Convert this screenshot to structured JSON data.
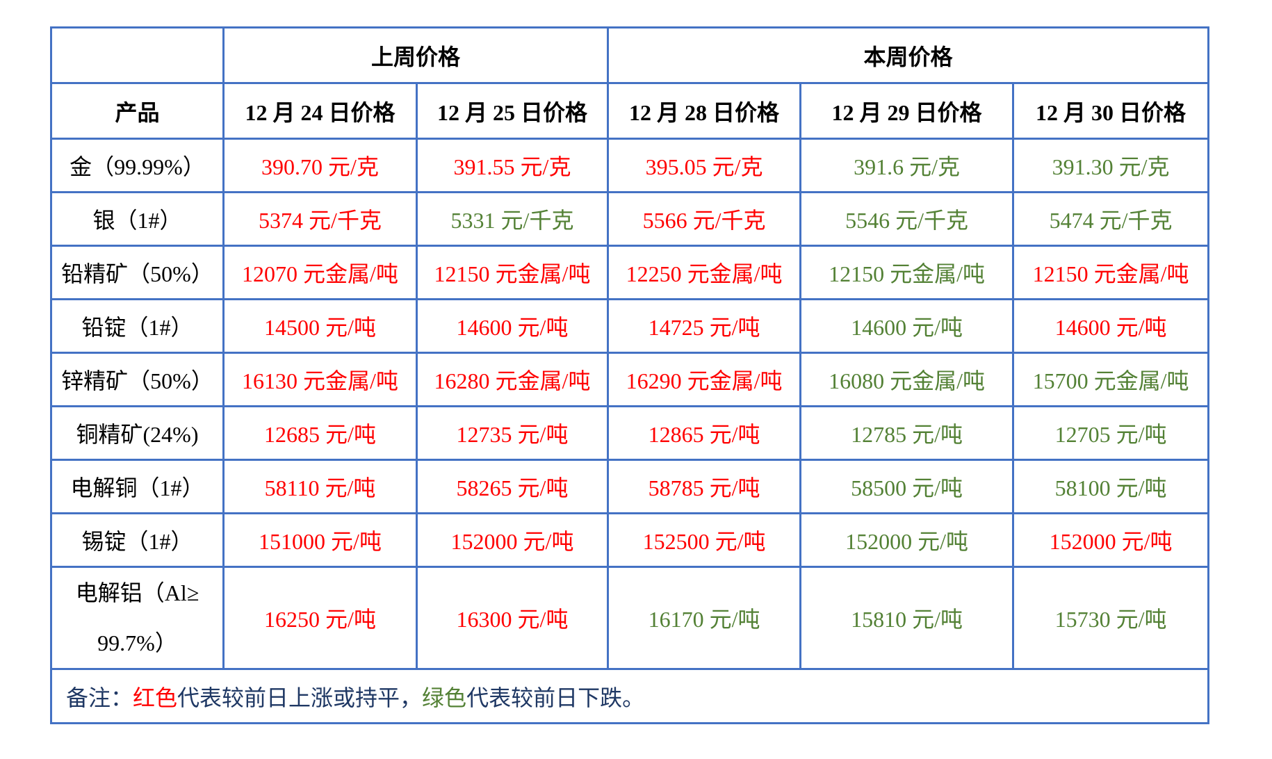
{
  "table": {
    "week_headers": [
      {
        "label": "上周价格",
        "colspan": 2
      },
      {
        "label": "本周价格",
        "colspan": 3
      }
    ],
    "product_header": "产品",
    "date_headers": [
      "12 月 24 日价格",
      "12 月 25 日价格",
      "12 月 28 日价格",
      "12 月 29 日价格",
      "12 月 30 日价格"
    ],
    "rows": [
      {
        "product": "金（99.99%）",
        "tall": false,
        "prices": [
          {
            "text": "390.70 元/克",
            "color": "red"
          },
          {
            "text": "391.55 元/克",
            "color": "red"
          },
          {
            "text": "395.05 元/克",
            "color": "red"
          },
          {
            "text": "391.6 元/克",
            "color": "green"
          },
          {
            "text": "391.30 元/克",
            "color": "green"
          }
        ]
      },
      {
        "product": "银（1#）",
        "tall": false,
        "prices": [
          {
            "text": "5374 元/千克",
            "color": "red"
          },
          {
            "text": "5331 元/千克",
            "color": "green"
          },
          {
            "text": "5566 元/千克",
            "color": "red"
          },
          {
            "text": "5546 元/千克",
            "color": "green"
          },
          {
            "text": "5474 元/千克",
            "color": "green"
          }
        ]
      },
      {
        "product": "铅精矿（50%）",
        "tall": false,
        "prices": [
          {
            "text": "12070 元金属/吨",
            "color": "red"
          },
          {
            "text": "12150 元金属/吨",
            "color": "red"
          },
          {
            "text": "12250 元金属/吨",
            "color": "red"
          },
          {
            "text": "12150 元金属/吨",
            "color": "green"
          },
          {
            "text": "12150 元金属/吨",
            "color": "red"
          }
        ]
      },
      {
        "product": "铅锭（1#）",
        "tall": false,
        "prices": [
          {
            "text": "14500 元/吨",
            "color": "red"
          },
          {
            "text": "14600 元/吨",
            "color": "red"
          },
          {
            "text": "14725 元/吨",
            "color": "red"
          },
          {
            "text": "14600 元/吨",
            "color": "green"
          },
          {
            "text": "14600 元/吨",
            "color": "red"
          }
        ]
      },
      {
        "product": "锌精矿（50%）",
        "tall": false,
        "prices": [
          {
            "text": "16130 元金属/吨",
            "color": "red"
          },
          {
            "text": "16280 元金属/吨",
            "color": "red"
          },
          {
            "text": "16290 元金属/吨",
            "color": "red"
          },
          {
            "text": "16080 元金属/吨",
            "color": "green"
          },
          {
            "text": "15700 元金属/吨",
            "color": "green"
          }
        ]
      },
      {
        "product": "铜精矿(24%)",
        "tall": false,
        "prices": [
          {
            "text": "12685 元/吨",
            "color": "red"
          },
          {
            "text": "12735 元/吨",
            "color": "red"
          },
          {
            "text": "12865 元/吨",
            "color": "red"
          },
          {
            "text": "12785 元/吨",
            "color": "green"
          },
          {
            "text": "12705 元/吨",
            "color": "green"
          }
        ]
      },
      {
        "product": "电解铜（1#）",
        "tall": false,
        "prices": [
          {
            "text": "58110 元/吨",
            "color": "red"
          },
          {
            "text": "58265 元/吨",
            "color": "red"
          },
          {
            "text": "58785 元/吨",
            "color": "red"
          },
          {
            "text": "58500 元/吨",
            "color": "green"
          },
          {
            "text": "58100 元/吨",
            "color": "green"
          }
        ]
      },
      {
        "product": "锡锭（1#）",
        "tall": false,
        "prices": [
          {
            "text": "151000 元/吨",
            "color": "red"
          },
          {
            "text": "152000 元/吨",
            "color": "red"
          },
          {
            "text": "152500 元/吨",
            "color": "red"
          },
          {
            "text": "152000 元/吨",
            "color": "green"
          },
          {
            "text": "152000 元/吨",
            "color": "red"
          }
        ]
      },
      {
        "product": "电解铝（Al≥\n99.7%）",
        "tall": true,
        "prices": [
          {
            "text": "16250 元/吨",
            "color": "red"
          },
          {
            "text": "16300 元/吨",
            "color": "red"
          },
          {
            "text": "16170 元/吨",
            "color": "green"
          },
          {
            "text": "15810 元/吨",
            "color": "green"
          },
          {
            "text": "15730 元/吨",
            "color": "green"
          }
        ]
      }
    ],
    "note_parts": [
      {
        "text": "备注：",
        "color": "navy"
      },
      {
        "text": "红色",
        "color": "red"
      },
      {
        "text": "代表较前日上涨或持平，",
        "color": "navy"
      },
      {
        "text": "绿色",
        "color": "green"
      },
      {
        "text": "代表较前日下跌。",
        "color": "navy"
      }
    ],
    "colors": {
      "red": "#FF0000",
      "green": "#538135",
      "navy": "#1F3864",
      "border": "#4472C4"
    }
  }
}
